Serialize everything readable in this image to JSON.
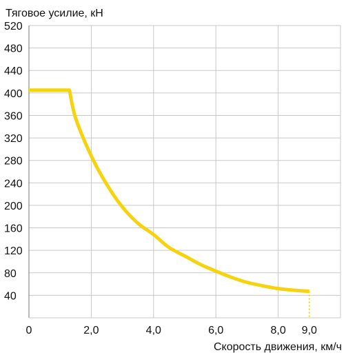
{
  "chart_data": {
    "type": "line",
    "title": "",
    "ylabel": "Тяговое усилие, кН",
    "xlabel": "Скорость движения, км/ч",
    "xlim": [
      0,
      10
    ],
    "ylim": [
      0,
      520
    ],
    "grid": true,
    "x_ticks": [
      {
        "value": 0,
        "label": "0"
      },
      {
        "value": 2,
        "label": "2,0"
      },
      {
        "value": 4,
        "label": "4,0"
      },
      {
        "value": 6,
        "label": "6,0"
      },
      {
        "value": 8,
        "label": "8,0"
      },
      {
        "value": 9,
        "label": "9,0"
      }
    ],
    "x_grid": [
      2,
      4,
      6,
      8,
      10
    ],
    "y_ticks": [
      {
        "value": 40,
        "label": "40"
      },
      {
        "value": 80,
        "label": "80"
      },
      {
        "value": 120,
        "label": "120"
      },
      {
        "value": 160,
        "label": "160"
      },
      {
        "value": 200,
        "label": "200"
      },
      {
        "value": 240,
        "label": "240"
      },
      {
        "value": 280,
        "label": "280"
      },
      {
        "value": 320,
        "label": "320"
      },
      {
        "value": 360,
        "label": "360"
      },
      {
        "value": 400,
        "label": "400"
      },
      {
        "value": 440,
        "label": "440"
      },
      {
        "value": 480,
        "label": "480"
      },
      {
        "value": 520,
        "label": "520"
      }
    ],
    "series": [
      {
        "color": "#f5d30f",
        "x": [
          0,
          1.3,
          1.5,
          2.0,
          2.5,
          3.0,
          3.5,
          4.0,
          4.5,
          5.0,
          5.5,
          6.0,
          6.5,
          7.0,
          7.5,
          8.0,
          8.5,
          9.0
        ],
        "y": [
          405,
          405,
          355,
          288,
          237,
          197,
          168,
          148,
          125,
          110,
          95,
          83,
          72,
          63,
          57,
          52,
          49,
          47
        ]
      }
    ],
    "cutoff": {
      "x": 9.0,
      "y_from": 47,
      "y_to": 0,
      "style": "dotted",
      "color": "#f5d30f"
    }
  }
}
